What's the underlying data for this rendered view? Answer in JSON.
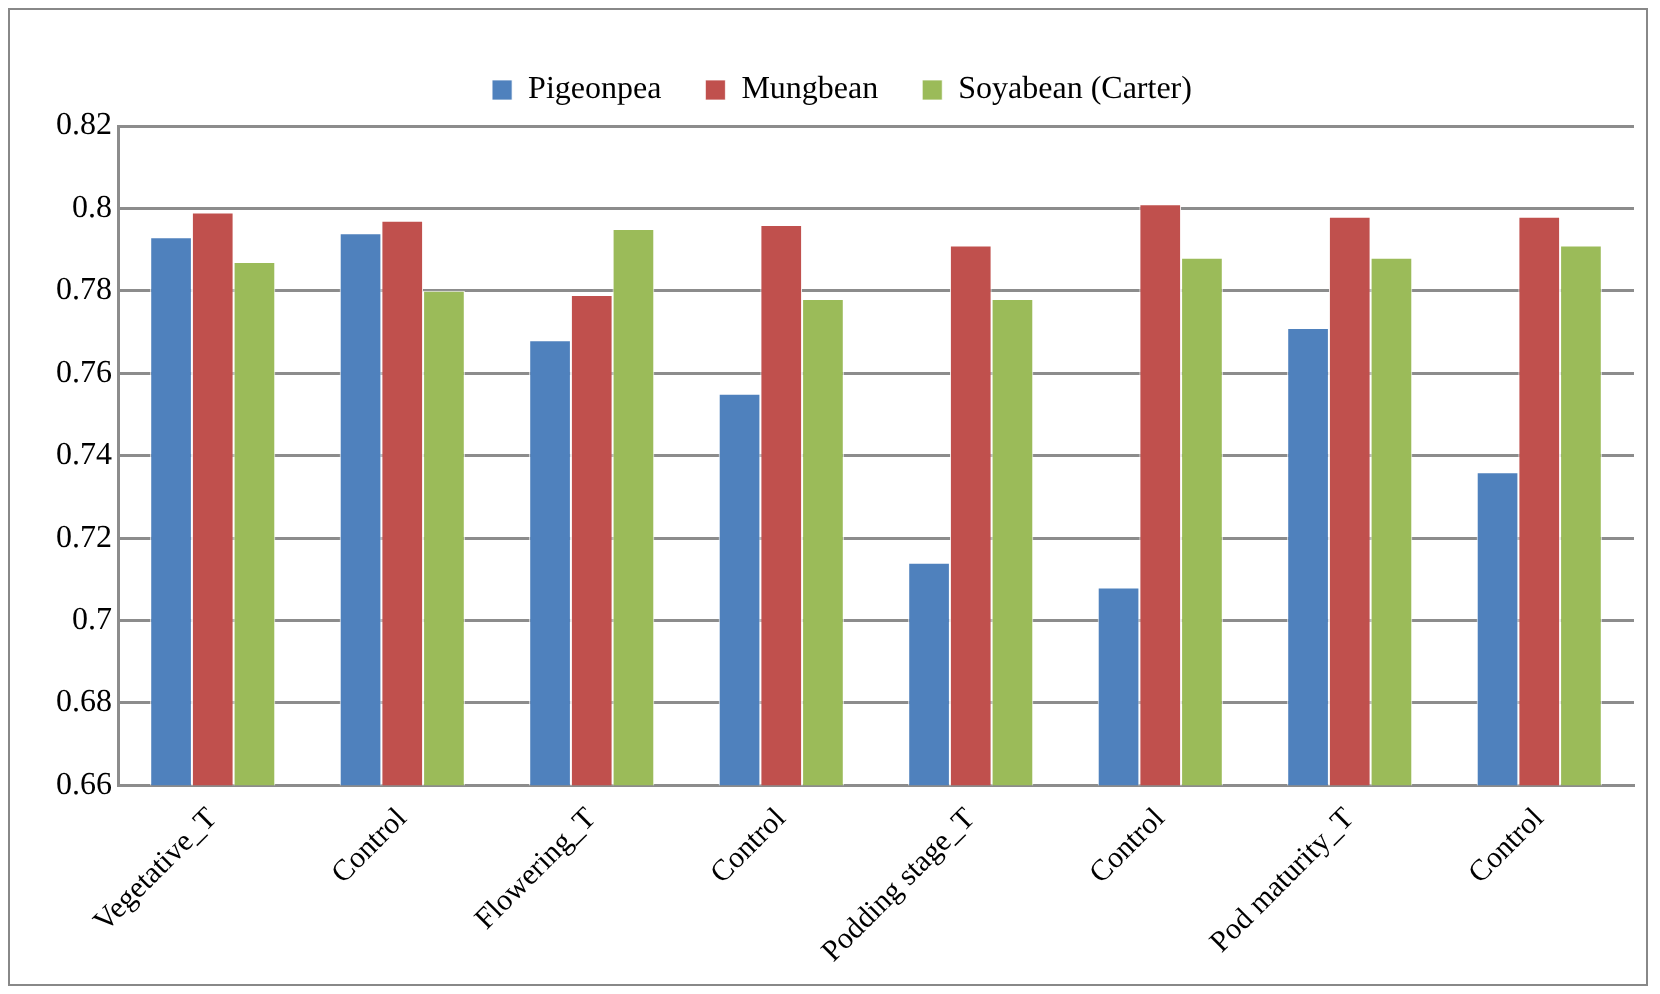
{
  "chart_data": {
    "type": "bar",
    "categories": [
      "Vegetative_T",
      "Control",
      "Flowering_T",
      "Control",
      "Podding stage_T",
      "Control",
      "Pod maturity_T",
      "Control"
    ],
    "series": [
      {
        "name": "Pigeonpea",
        "color": "#4f81bd",
        "values": [
          0.793,
          0.794,
          0.768,
          0.755,
          0.714,
          0.708,
          0.771,
          0.736
        ]
      },
      {
        "name": "Mungbean",
        "color": "#c0504d",
        "values": [
          0.799,
          0.797,
          0.779,
          0.796,
          0.791,
          0.801,
          0.798,
          0.798
        ]
      },
      {
        "name": "Soyabean (Carter)",
        "color": "#9bbb59",
        "values": [
          0.787,
          0.78,
          0.795,
          0.778,
          0.778,
          0.788,
          0.788,
          0.791
        ]
      }
    ],
    "ylim": [
      0.66,
      0.82
    ],
    "yticks": [
      0.66,
      0.68,
      0.7,
      0.72,
      0.74,
      0.76,
      0.78,
      0.8,
      0.82
    ],
    "grid": "y",
    "legend": "top"
  }
}
